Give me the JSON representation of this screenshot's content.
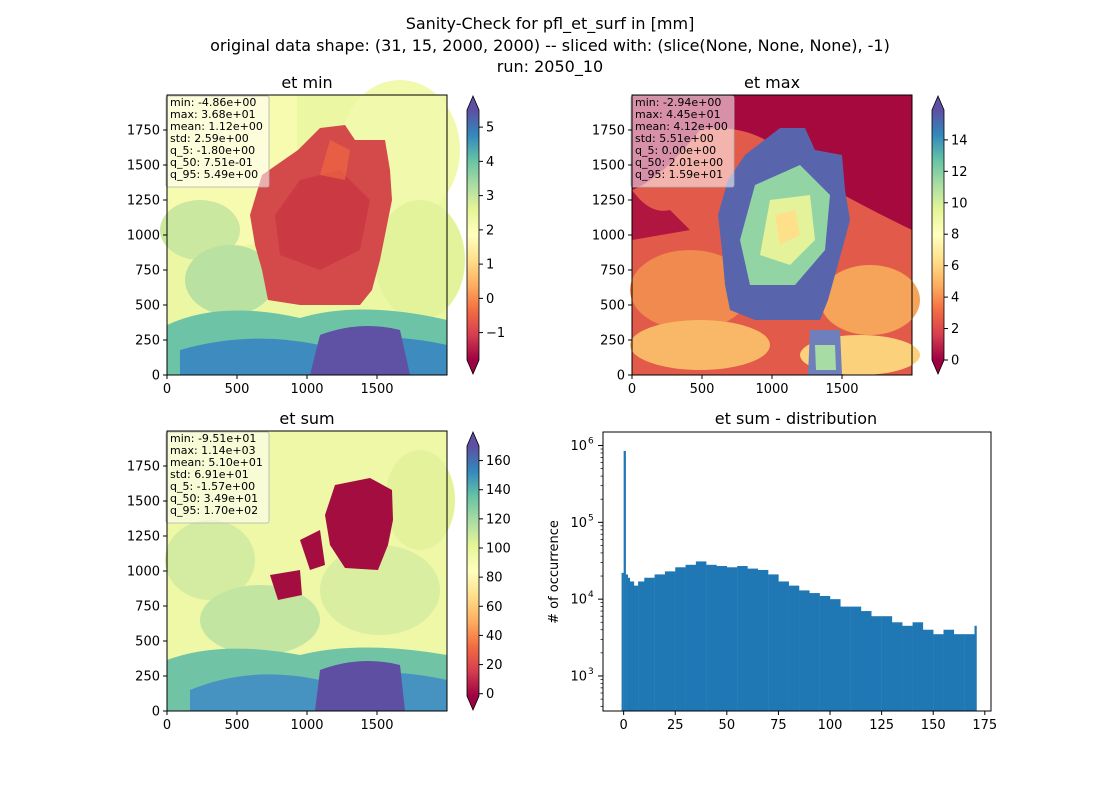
{
  "figure": {
    "title_lines": [
      "Sanity-Check for pfl_et_surf in [mm]",
      "original data shape: (31, 15, 2000, 2000) -- sliced with: (slice(None, None, None), -1)",
      "run: 2050_10"
    ]
  },
  "chart_data": [
    {
      "type": "heatmap",
      "title": "et min",
      "xlim": [
        0,
        2000
      ],
      "ylim": [
        0,
        2000
      ],
      "xticks": [
        0,
        500,
        1000,
        1500
      ],
      "yticks": [
        0,
        250,
        500,
        750,
        1000,
        1250,
        1500,
        1750
      ],
      "colormap": "Spectral",
      "colorbar": {
        "range": [
          -1.8,
          5.5
        ],
        "ticks": [
          -1,
          0,
          1,
          2,
          3,
          4,
          5
        ],
        "extend": "both"
      },
      "stats": [
        "min: -4.86e+00",
        "max: 3.68e+01",
        "mean: 1.12e+00",
        "std: 2.59e+00",
        "q_5: -1.80e+00",
        "q_50: 7.51e-01",
        "q_95: 5.49e+00"
      ]
    },
    {
      "type": "heatmap",
      "title": "et max",
      "xlim": [
        0,
        2000
      ],
      "ylim": [
        0,
        2000
      ],
      "xticks": [
        0,
        500,
        1000,
        1500
      ],
      "yticks": [
        0,
        250,
        500,
        750,
        1000,
        1250,
        1500,
        1750
      ],
      "colormap": "Spectral",
      "colorbar": {
        "range": [
          0,
          15.9
        ],
        "ticks": [
          0,
          2,
          4,
          6,
          8,
          10,
          12,
          14
        ],
        "extend": "both"
      },
      "stats": [
        "min: -2.94e+00",
        "max: 4.45e+01",
        "mean: 4.12e+00",
        "std: 5.51e+00",
        "q_5: 0.00e+00",
        "q_50: 2.01e+00",
        "q_95: 1.59e+01"
      ]
    },
    {
      "type": "heatmap",
      "title": "et sum",
      "xlim": [
        0,
        2000
      ],
      "ylim": [
        0,
        2000
      ],
      "xticks": [
        0,
        500,
        1000,
        1500
      ],
      "yticks": [
        0,
        250,
        500,
        750,
        1000,
        1250,
        1500,
        1750
      ],
      "colormap": "Spectral",
      "colorbar": {
        "range": [
          -1.57,
          170
        ],
        "ticks": [
          0,
          20,
          40,
          60,
          80,
          100,
          120,
          140,
          160
        ],
        "extend": "both"
      },
      "stats": [
        "min: -9.51e+01",
        "max: 1.14e+03",
        "mean: 5.10e+01",
        "std: 6.91e+01",
        "q_5: -1.57e+00",
        "q_50: 3.49e+01",
        "q_95: 1.70e+02"
      ]
    },
    {
      "type": "bar",
      "title": "et sum - distribution",
      "ylabel": "# of occurrence",
      "xlim": [
        -10,
        178
      ],
      "ylim": [
        350,
        1500000
      ],
      "yscale": "log",
      "xticks": [
        0,
        25,
        50,
        75,
        100,
        125,
        150,
        175
      ],
      "yticks": [
        1000,
        10000,
        100000,
        1000000
      ],
      "ytick_labels": [
        "10",
        "10",
        "10",
        "10"
      ],
      "ytick_exponents": [
        "3",
        "4",
        "5",
        "6"
      ],
      "color": "#1f77b4",
      "x": [
        -1,
        0,
        1,
        2,
        3,
        5,
        7,
        10,
        15,
        20,
        25,
        30,
        35,
        40,
        45,
        50,
        55,
        60,
        65,
        70,
        75,
        80,
        85,
        90,
        95,
        100,
        105,
        110,
        115,
        120,
        125,
        130,
        135,
        140,
        145,
        150,
        155,
        160,
        165,
        170
      ],
      "values": [
        22000,
        850000,
        21000,
        19000,
        17000,
        15000,
        17000,
        19000,
        21000,
        23000,
        26000,
        28000,
        31000,
        28000,
        27000,
        26000,
        27000,
        25000,
        24000,
        21000,
        17000,
        15000,
        13000,
        12000,
        11000,
        10000,
        8000,
        8000,
        7000,
        6000,
        6000,
        5000,
        4500,
        5000,
        4000,
        3500,
        4000,
        3500,
        3500,
        4500
      ]
    }
  ]
}
